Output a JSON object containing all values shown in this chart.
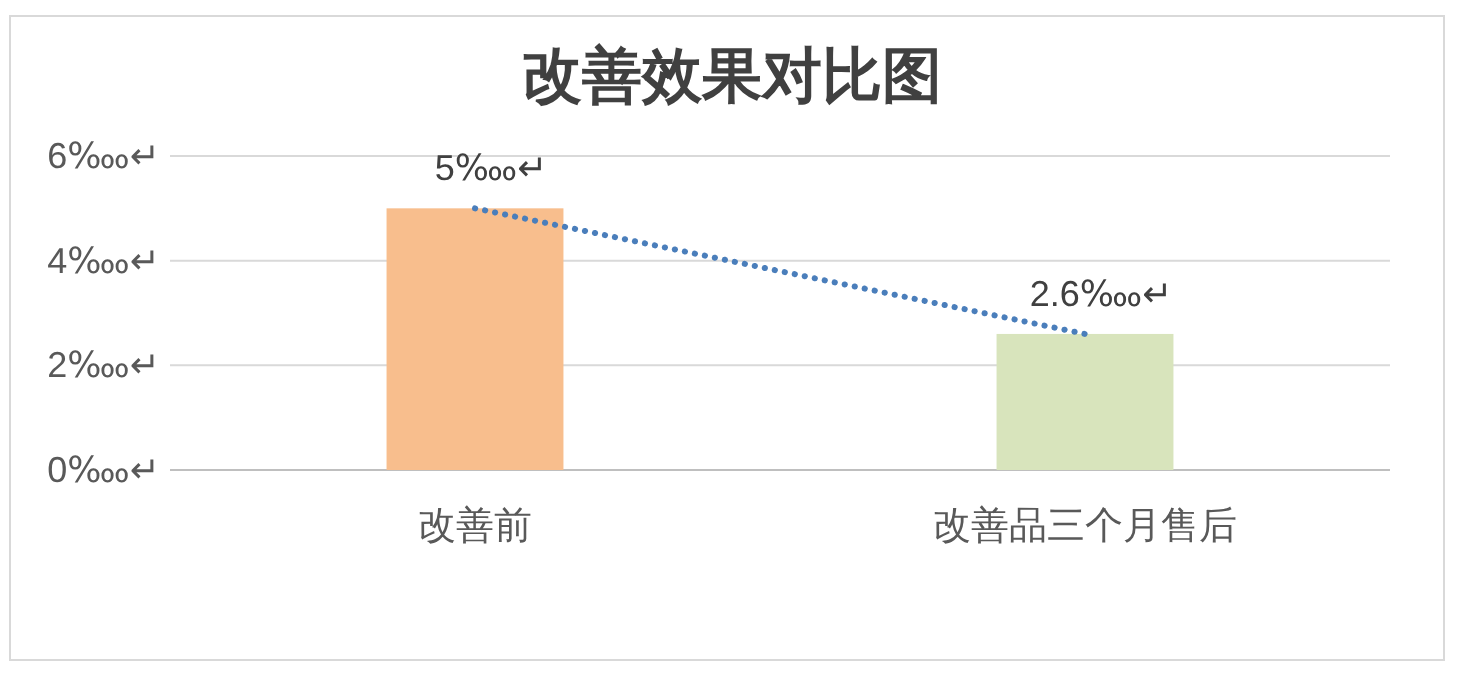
{
  "chart_data": {
    "type": "bar",
    "title": "改善效果对比图",
    "categories": [
      "改善前",
      "改善品三个月售后"
    ],
    "series": [
      {
        "colors": [
          "#f8be8d",
          "#d8e4bc"
        ],
        "values": [
          5,
          2.6
        ],
        "value_labels": [
          "5‱↵",
          "2.6‱↵"
        ]
      },
      {
        "type": "line",
        "color": "#4a7ebb",
        "values": [
          5,
          2.6
        ],
        "line_style": "dotted",
        "marker": "none"
      }
    ],
    "ylim": [
      0,
      6
    ],
    "yticks": [
      {
        "value": 0,
        "label": "0‱↵"
      },
      {
        "value": 2,
        "label": "2‱↵"
      },
      {
        "value": 4,
        "label": "4‱↵"
      },
      {
        "value": 6,
        "label": "6‱↵"
      }
    ],
    "grid": "y"
  }
}
